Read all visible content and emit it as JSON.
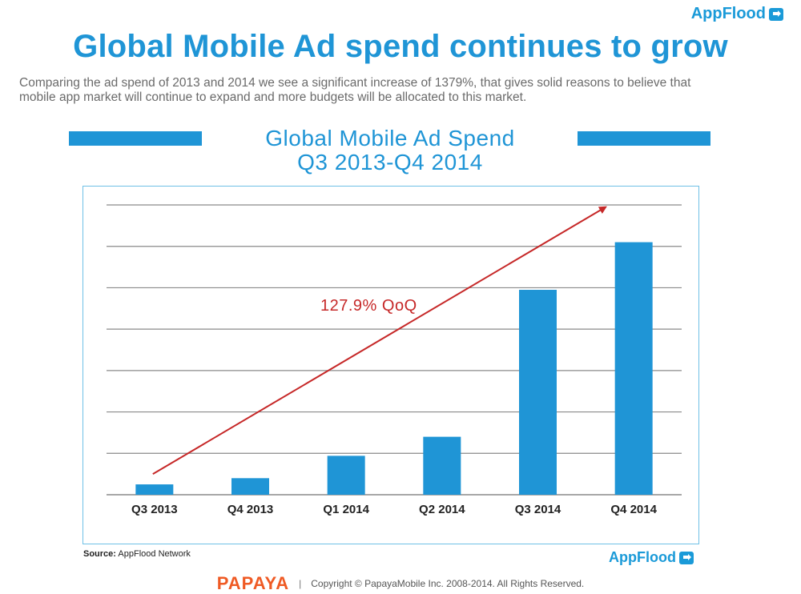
{
  "header": {
    "brand": "AppFlood",
    "title": "Global Mobile Ad spend continues to grow",
    "description_line1": "Comparing the ad spend of 2013 and 2014 we see a significant increase of 1379%, that gives solid reasons to believe that",
    "description_line2": "mobile app market will continue to expand and more budgets will be allocated to this market."
  },
  "chart_data": {
    "type": "bar",
    "title_line1": "Global Mobile Ad Spend",
    "title_line2": "Q3 2013-Q4 2014",
    "categories": [
      "Q3 2013",
      "Q4 2013",
      "Q1 2014",
      "Q2 2014",
      "Q3 2014",
      "Q4 2014"
    ],
    "values": [
      0.25,
      0.4,
      0.94,
      1.4,
      4.95,
      6.1
    ],
    "ylim": [
      0,
      7
    ],
    "ytick_step": 1,
    "y_tick_labels_shown": false,
    "grid": true,
    "bar_color": "#1f95d6",
    "annotation": {
      "text": "127.9% QoQ",
      "color": "#c62828"
    },
    "trend_arrow": {
      "from": [
        "Q3 2013",
        0.5
      ],
      "to": [
        "Q4 2014",
        6.95
      ],
      "color": "#c62828"
    },
    "xlabel": "",
    "ylabel": ""
  },
  "footer": {
    "source_label": "Source:",
    "source_text": "AppFlood Network",
    "brand": "AppFlood",
    "company": "PAPAYA",
    "separator": "|",
    "copyright": "Copyright © PapayaMobile Inc. 2008-2014. All Rights Reserved."
  }
}
